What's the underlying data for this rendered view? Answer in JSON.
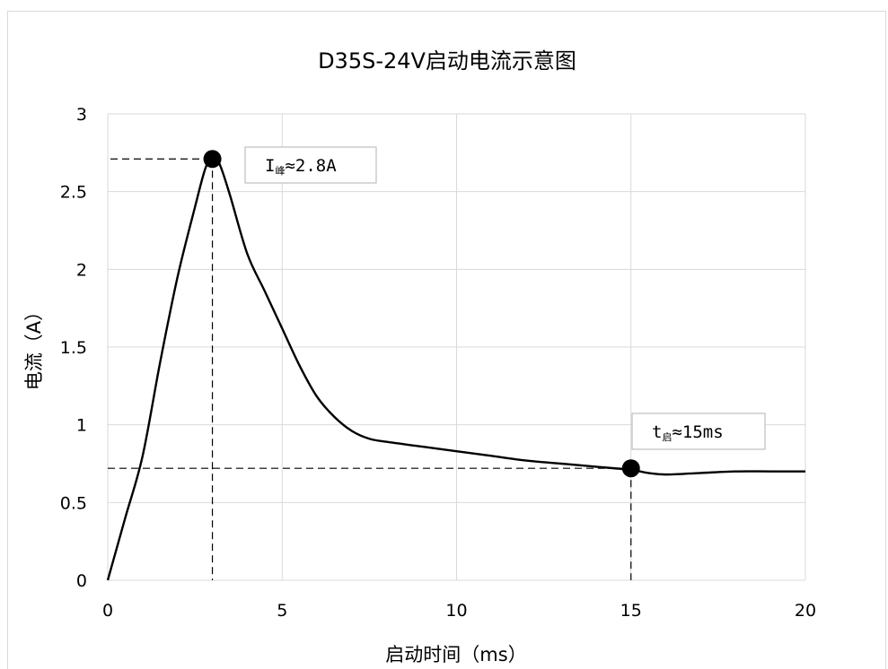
{
  "chart_data": {
    "type": "line",
    "title": "D35S-24V启动电流示意图",
    "xlabel": "启动时间（ms）",
    "ylabel": "电流（A）",
    "xlim": [
      0,
      20
    ],
    "ylim": [
      0,
      3
    ],
    "x_ticks": [
      "0",
      "5",
      "10",
      "15",
      "20"
    ],
    "y_ticks": [
      "0",
      "0.5",
      "1",
      "1.5",
      "2",
      "2.5",
      "3"
    ],
    "grid": true,
    "legend": "none",
    "line_color": "#000000",
    "series": [
      {
        "x": [
          0,
          0.5,
          1,
          1.5,
          2,
          2.5,
          2.8,
          3,
          3.2,
          3.5,
          4,
          4.5,
          5,
          5.5,
          6,
          6.5,
          7,
          7.5,
          8,
          9,
          10,
          11,
          12,
          13,
          14,
          15,
          15.5,
          16,
          17,
          18,
          19,
          20
        ],
        "y": [
          0,
          0.4,
          0.8,
          1.4,
          1.95,
          2.4,
          2.65,
          2.71,
          2.68,
          2.48,
          2.1,
          1.86,
          1.62,
          1.38,
          1.18,
          1.05,
          0.96,
          0.91,
          0.89,
          0.86,
          0.83,
          0.8,
          0.77,
          0.75,
          0.73,
          0.71,
          0.69,
          0.68,
          0.69,
          0.7,
          0.7,
          0.7
        ]
      }
    ],
    "markers": [
      {
        "x": 3,
        "y": 2.71,
        "label_main": "I",
        "label_sub": "峰",
        "label_rest": "≈2.8A"
      },
      {
        "x": 15,
        "y": 0.72,
        "label_main": "t",
        "label_sub": "启",
        "label_rest": "≈15ms"
      }
    ],
    "guide_lines": [
      {
        "x": 3,
        "y": 2.71
      },
      {
        "x": 15,
        "y": 0.72
      }
    ]
  }
}
